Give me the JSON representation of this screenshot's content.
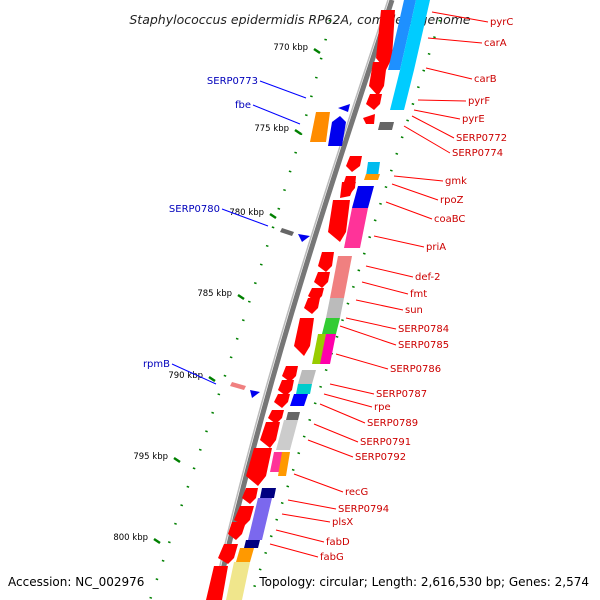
{
  "title": "Staphylococcus epidermidis RP62A, complete genome",
  "accession_text": "Accession: NC_002976",
  "topology_text": "Topology: circular; Length: 2,616,530 bp; Genes: 2,574",
  "colors": {
    "backbone": "#808080",
    "forward_gene": "#ff0000",
    "reverse_gene": "#0000ff",
    "label_forward": "#cc0000",
    "label_reverse": "#0000bb",
    "ticks": "#008000"
  },
  "ticks": [
    "770 kbp",
    "775 kbp",
    "780 kbp",
    "785 kbp",
    "790 kbp",
    "795 kbp",
    "800 kbp"
  ],
  "forward_labels": [
    "pyrC",
    "carA",
    "carB",
    "pyrF",
    "pyrE",
    "SERP0772",
    "SERP0774",
    "gmk",
    "rpoZ",
    "coaBC",
    "priA",
    "def-2",
    "fmt",
    "sun",
    "SERP0784",
    "SERP0785",
    "SERP0786",
    "SERP0787",
    "rpe",
    "SERP0789",
    "SERP0791",
    "SERP0792",
    "recG",
    "SERP0794",
    "plsX",
    "fabD",
    "fabG"
  ],
  "reverse_labels": [
    "SERP0773",
    "fbe",
    "SERP0780",
    "rpmB"
  ]
}
